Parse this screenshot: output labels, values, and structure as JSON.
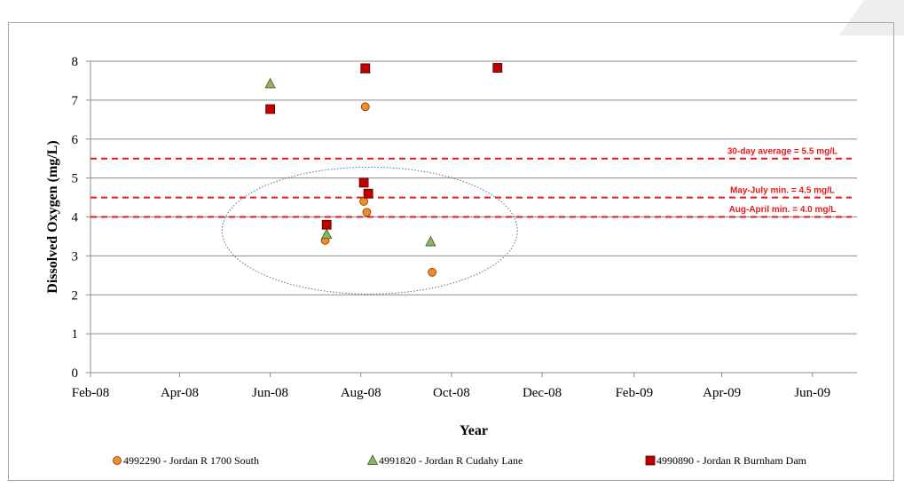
{
  "chart_data": {
    "type": "scatter",
    "title": "",
    "xlabel": "Year",
    "ylabel": "Dissolved Oxygen (mg/L)",
    "ylim": [
      0,
      8
    ],
    "yticks": [
      0,
      1,
      2,
      3,
      4,
      5,
      6,
      7,
      8
    ],
    "xlim": [
      "2008-02-01",
      "2009-07-01"
    ],
    "xticks": [
      {
        "date": "2008-02-01",
        "label": "Feb-08"
      },
      {
        "date": "2008-04-01",
        "label": "Apr-08"
      },
      {
        "date": "2008-06-01",
        "label": "Jun-08"
      },
      {
        "date": "2008-08-01",
        "label": "Aug-08"
      },
      {
        "date": "2008-10-01",
        "label": "Oct-08"
      },
      {
        "date": "2008-12-01",
        "label": "Dec-08"
      },
      {
        "date": "2009-02-01",
        "label": "Feb-09"
      },
      {
        "date": "2009-04-01",
        "label": "Apr-09"
      },
      {
        "date": "2009-06-01",
        "label": "Jun-09"
      }
    ],
    "grid": "horizontal",
    "legend_position": "bottom",
    "series": [
      {
        "name": "4992290 - Jordan R 1700 South",
        "marker": "circle",
        "color": "#f28c28",
        "points": [
          {
            "x": "2008-07-08",
            "y": 3.4
          },
          {
            "x": "2008-08-03",
            "y": 4.4
          },
          {
            "x": "2008-08-04",
            "y": 6.83
          },
          {
            "x": "2008-08-05",
            "y": 4.12
          },
          {
            "x": "2008-09-18",
            "y": 2.58
          }
        ]
      },
      {
        "name": "4991820 - Jordan R Cudahy Lane",
        "marker": "triangle",
        "color": "#8bb560",
        "points": [
          {
            "x": "2008-06-01",
            "y": 7.42
          },
          {
            "x": "2008-07-09",
            "y": 3.55
          },
          {
            "x": "2008-08-04",
            "y": 7.8
          },
          {
            "x": "2008-09-17",
            "y": 3.36
          }
        ]
      },
      {
        "name": "4990890 - Jordan R Burnham Dam",
        "marker": "square",
        "color": "#c00000",
        "points": [
          {
            "x": "2008-06-01",
            "y": 6.77
          },
          {
            "x": "2008-07-09",
            "y": 3.8
          },
          {
            "x": "2008-08-03",
            "y": 4.88
          },
          {
            "x": "2008-08-04",
            "y": 7.82
          },
          {
            "x": "2008-08-06",
            "y": 4.6
          },
          {
            "x": "2008-11-01",
            "y": 7.83
          }
        ]
      }
    ],
    "reference_lines": [
      {
        "y": 5.5,
        "label": "30-day average  = 5.5 mg/L",
        "color": "#e31a1c"
      },
      {
        "y": 4.5,
        "label": "May-July  min. = 4.5 mg/L",
        "color": "#e31a1c"
      },
      {
        "y": 4.0,
        "label": "Aug-April  min. = 4.0 mg/L",
        "color": "#e31a1c"
      }
    ],
    "annotation": {
      "shape": "ellipse",
      "style": "dotted",
      "color": "#4f6fa8",
      "center_x": "2008-08-07",
      "center_y": 3.65,
      "radius_x_days": 28,
      "radius_y": 1.63
    }
  }
}
